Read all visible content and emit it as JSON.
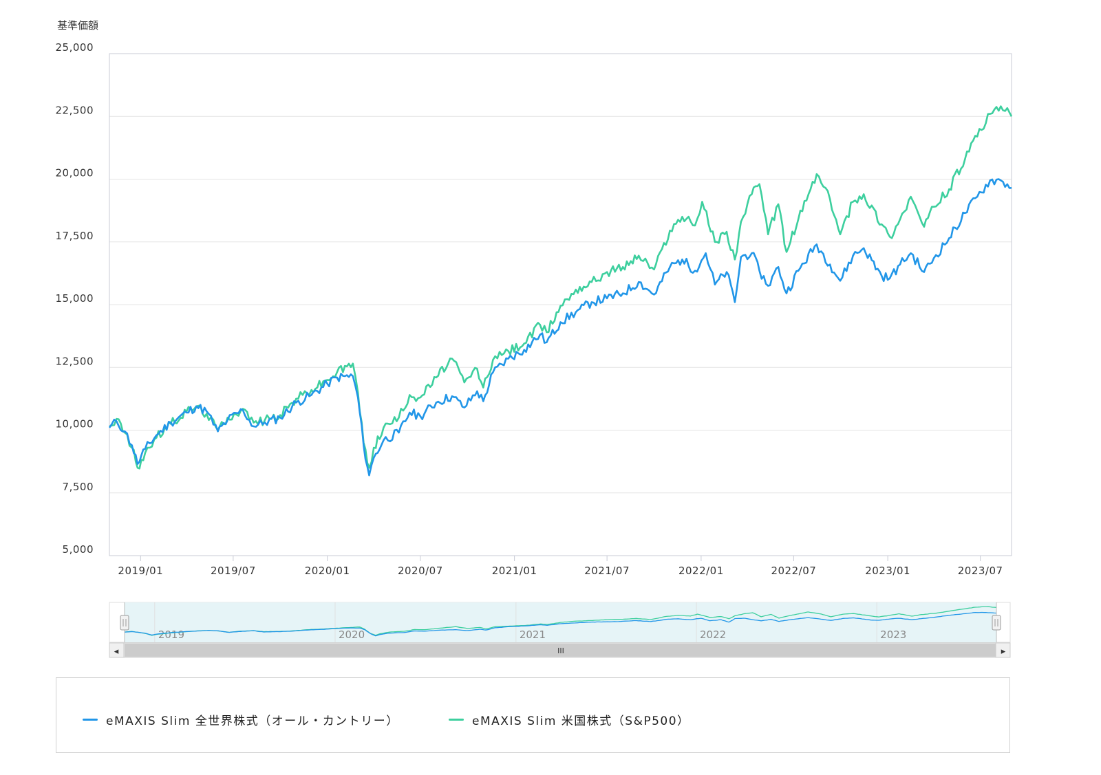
{
  "chart_data": {
    "type": "line",
    "y_title": "基準価額",
    "ylim": [
      5000,
      25000
    ],
    "y_ticks": [
      "5,000",
      "7,500",
      "10,000",
      "12,500",
      "15,000",
      "17,500",
      "20,000",
      "22,500",
      "25,000"
    ],
    "y_tick_values": [
      5000,
      7500,
      10000,
      12500,
      15000,
      17500,
      20000,
      22500,
      25000
    ],
    "x_range": [
      "2018-11-01",
      "2023-08-31"
    ],
    "x_ticks": [
      "2019/01",
      "2019/07",
      "2020/01",
      "2020/07",
      "2021/01",
      "2021/07",
      "2022/01",
      "2022/07",
      "2023/01",
      "2023/07"
    ],
    "x_tick_dates": [
      "2019-01-01",
      "2019-07-01",
      "2020-01-01",
      "2020-07-01",
      "2021-01-01",
      "2021-07-01",
      "2022-01-01",
      "2022-07-01",
      "2023-01-01",
      "2023-07-01"
    ],
    "grid": true,
    "legend_position": "bottom",
    "series": [
      {
        "name": "eMAXIS Slim 全世界株式（オール・カントリー）",
        "color": "#2196e8",
        "points": [
          [
            "2018-11-01",
            10100
          ],
          [
            "2018-11-15",
            10350
          ],
          [
            "2018-12-01",
            9950
          ],
          [
            "2018-12-15",
            9400
          ],
          [
            "2018-12-26",
            8650
          ],
          [
            "2019-01-10",
            9250
          ],
          [
            "2019-02-01",
            9800
          ],
          [
            "2019-03-01",
            10300
          ],
          [
            "2019-04-01",
            10700
          ],
          [
            "2019-04-20",
            10950
          ],
          [
            "2019-05-10",
            10750
          ],
          [
            "2019-06-01",
            9950
          ],
          [
            "2019-06-20",
            10400
          ],
          [
            "2019-07-20",
            10800
          ],
          [
            "2019-08-10",
            10150
          ],
          [
            "2019-09-01",
            10300
          ],
          [
            "2019-10-01",
            10500
          ],
          [
            "2019-11-01",
            11100
          ],
          [
            "2019-12-01",
            11400
          ],
          [
            "2020-01-01",
            11850
          ],
          [
            "2020-01-20",
            12100
          ],
          [
            "2020-02-20",
            12150
          ],
          [
            "2020-03-01",
            11300
          ],
          [
            "2020-03-12",
            9400
          ],
          [
            "2020-03-23",
            8200
          ],
          [
            "2020-04-01",
            8900
          ],
          [
            "2020-04-20",
            9600
          ],
          [
            "2020-05-20",
            9900
          ],
          [
            "2020-06-10",
            10700
          ],
          [
            "2020-07-01",
            10550
          ],
          [
            "2020-08-01",
            11100
          ],
          [
            "2020-09-01",
            11350
          ],
          [
            "2020-09-25",
            10900
          ],
          [
            "2020-10-20",
            11550
          ],
          [
            "2020-11-01",
            11150
          ],
          [
            "2020-11-20",
            12300
          ],
          [
            "2020-12-20",
            12850
          ],
          [
            "2021-01-20",
            13200
          ],
          [
            "2021-02-20",
            13800
          ],
          [
            "2021-03-05",
            13500
          ],
          [
            "2021-04-01",
            14300
          ],
          [
            "2021-05-01",
            14700
          ],
          [
            "2021-06-01",
            15100
          ],
          [
            "2021-07-01",
            15250
          ],
          [
            "2021-08-01",
            15450
          ],
          [
            "2021-09-01",
            15900
          ],
          [
            "2021-10-01",
            15400
          ],
          [
            "2021-11-01",
            16500
          ],
          [
            "2021-11-25",
            16800
          ],
          [
            "2021-12-20",
            16350
          ],
          [
            "2022-01-10",
            17050
          ],
          [
            "2022-01-28",
            15800
          ],
          [
            "2022-02-20",
            16300
          ],
          [
            "2022-03-08",
            15100
          ],
          [
            "2022-03-20",
            16900
          ],
          [
            "2022-04-10",
            17050
          ],
          [
            "2022-04-25",
            16350
          ],
          [
            "2022-05-12",
            15750
          ],
          [
            "2022-06-01",
            16500
          ],
          [
            "2022-06-17",
            15450
          ],
          [
            "2022-07-10",
            16350
          ],
          [
            "2022-08-15",
            17400
          ],
          [
            "2022-09-10",
            16600
          ],
          [
            "2022-09-30",
            15950
          ],
          [
            "2022-10-25",
            16950
          ],
          [
            "2022-11-15",
            17250
          ],
          [
            "2022-12-20",
            16150
          ],
          [
            "2023-01-05",
            16050
          ],
          [
            "2023-01-25",
            16600
          ],
          [
            "2023-02-15",
            17050
          ],
          [
            "2023-03-13",
            16300
          ],
          [
            "2023-04-01",
            16850
          ],
          [
            "2023-05-01",
            17650
          ],
          [
            "2023-06-01",
            18650
          ],
          [
            "2023-06-25",
            19300
          ],
          [
            "2023-07-20",
            19950
          ],
          [
            "2023-08-10",
            19950
          ],
          [
            "2023-08-31",
            19650
          ]
        ]
      },
      {
        "name": "eMAXIS Slim 米国株式（S&P500）",
        "color": "#3dcf9e",
        "points": [
          [
            "2018-11-01",
            10150
          ],
          [
            "2018-11-15",
            10450
          ],
          [
            "2018-12-01",
            9900
          ],
          [
            "2018-12-15",
            9300
          ],
          [
            "2018-12-26",
            8500
          ],
          [
            "2019-01-10",
            9100
          ],
          [
            "2019-02-01",
            9700
          ],
          [
            "2019-03-01",
            10250
          ],
          [
            "2019-04-01",
            10750
          ],
          [
            "2019-04-20",
            10950
          ],
          [
            "2019-05-10",
            10650
          ],
          [
            "2019-06-01",
            10000
          ],
          [
            "2019-06-20",
            10500
          ],
          [
            "2019-07-20",
            10850
          ],
          [
            "2019-08-10",
            10300
          ],
          [
            "2019-09-01",
            10400
          ],
          [
            "2019-10-01",
            10600
          ],
          [
            "2019-11-01",
            11250
          ],
          [
            "2019-12-01",
            11600
          ],
          [
            "2020-01-01",
            12000
          ],
          [
            "2020-01-20",
            12300
          ],
          [
            "2020-02-20",
            12650
          ],
          [
            "2020-03-01",
            11500
          ],
          [
            "2020-03-12",
            9500
          ],
          [
            "2020-03-23",
            8500
          ],
          [
            "2020-04-01",
            9300
          ],
          [
            "2020-04-20",
            10100
          ],
          [
            "2020-05-20",
            10500
          ],
          [
            "2020-06-10",
            11400
          ],
          [
            "2020-07-01",
            11300
          ],
          [
            "2020-08-01",
            12100
          ],
          [
            "2020-09-01",
            12850
          ],
          [
            "2020-09-25",
            11900
          ],
          [
            "2020-10-20",
            12450
          ],
          [
            "2020-11-01",
            11700
          ],
          [
            "2020-11-20",
            12800
          ],
          [
            "2020-12-20",
            13150
          ],
          [
            "2021-01-20",
            13450
          ],
          [
            "2021-02-20",
            14200
          ],
          [
            "2021-03-05",
            13900
          ],
          [
            "2021-04-01",
            14950
          ],
          [
            "2021-05-01",
            15600
          ],
          [
            "2021-06-01",
            15900
          ],
          [
            "2021-07-01",
            16300
          ],
          [
            "2021-08-01",
            16500
          ],
          [
            "2021-09-01",
            16950
          ],
          [
            "2021-10-01",
            16400
          ],
          [
            "2021-11-01",
            17950
          ],
          [
            "2021-11-25",
            18500
          ],
          [
            "2021-12-20",
            18150
          ],
          [
            "2022-01-03",
            19100
          ],
          [
            "2022-01-28",
            17500
          ],
          [
            "2022-02-20",
            17900
          ],
          [
            "2022-03-08",
            16800
          ],
          [
            "2022-03-20",
            18300
          ],
          [
            "2022-04-10",
            19400
          ],
          [
            "2022-04-25",
            19800
          ],
          [
            "2022-05-12",
            17800
          ],
          [
            "2022-06-01",
            19000
          ],
          [
            "2022-06-17",
            17100
          ],
          [
            "2022-07-10",
            18400
          ],
          [
            "2022-08-15",
            20200
          ],
          [
            "2022-09-10",
            19200
          ],
          [
            "2022-09-30",
            17800
          ],
          [
            "2022-10-25",
            19100
          ],
          [
            "2022-11-15",
            19400
          ],
          [
            "2022-12-20",
            18200
          ],
          [
            "2023-01-05",
            17700
          ],
          [
            "2023-01-25",
            18400
          ],
          [
            "2023-02-15",
            19300
          ],
          [
            "2023-03-13",
            18100
          ],
          [
            "2023-04-01",
            18900
          ],
          [
            "2023-05-01",
            19600
          ],
          [
            "2023-06-01",
            20800
          ],
          [
            "2023-06-25",
            21700
          ],
          [
            "2023-07-20",
            22600
          ],
          [
            "2023-08-10",
            22900
          ],
          [
            "2023-08-31",
            22500
          ]
        ]
      }
    ]
  },
  "navigator": {
    "labels": [
      "2019",
      "2020",
      "2021",
      "2022",
      "2023"
    ],
    "label_dates": [
      "2019-01-01",
      "2020-01-01",
      "2021-01-01",
      "2022-01-01",
      "2023-01-01"
    ],
    "scroll_grip": "III",
    "left_arrow": "◂",
    "right_arrow": "▸"
  },
  "colors": {
    "axis": "#c8cbd6",
    "grid": "#e4e4e4",
    "navigator_fill": "#e6f4f7",
    "scrollbar": "#cccccc"
  }
}
